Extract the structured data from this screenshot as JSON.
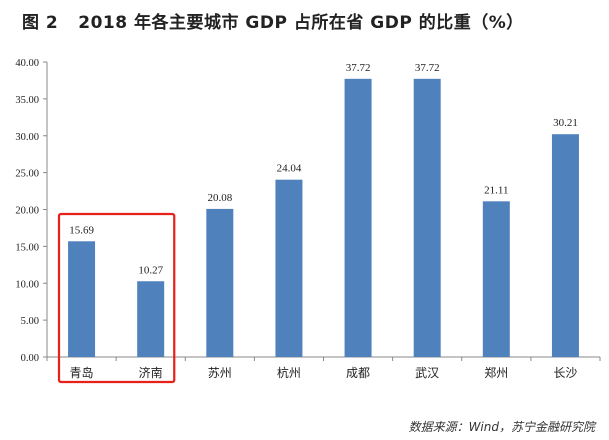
{
  "header": {
    "figure_number": "图 2",
    "title": "2018 年各主要城市 GDP 占所在省 GDP 的比重（%）"
  },
  "footer": {
    "source": "数据来源：Wind，苏宁金融研究院"
  },
  "colors": {
    "bar": "#4f81bd",
    "highlight_box": "#e8201a",
    "axis": "#888888"
  },
  "chart_data": {
    "type": "bar",
    "title": "2018 年各主要城市 GDP 占所在省 GDP 的比重（%）",
    "xlabel": "",
    "ylabel": "",
    "categories": [
      "青岛",
      "济南",
      "苏州",
      "杭州",
      "成都",
      "武汉",
      "郑州",
      "长沙"
    ],
    "values": [
      15.69,
      10.27,
      20.08,
      24.04,
      37.72,
      37.72,
      21.11,
      30.21
    ],
    "data_labels": [
      "15.69",
      "10.27",
      "20.08",
      "24.04",
      "37.72",
      "37.72",
      "21.11",
      "30.21"
    ],
    "ylim": [
      0,
      40
    ],
    "yticks": [
      0,
      5,
      10,
      15,
      20,
      25,
      30,
      35,
      40
    ],
    "ytick_labels": [
      "0.00",
      "5.00",
      "10.00",
      "15.00",
      "20.00",
      "25.00",
      "30.00",
      "35.00",
      "40.00"
    ],
    "grid": false,
    "legend": "none",
    "highlighted_categories": [
      "青岛",
      "济南"
    ]
  }
}
